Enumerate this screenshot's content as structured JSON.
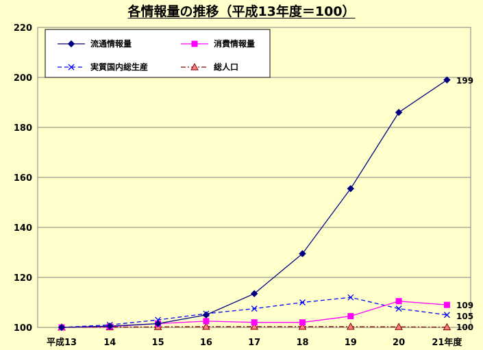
{
  "chart_data": {
    "type": "line",
    "title": "各情報量の推移（平成13年度＝100）",
    "categories": [
      "平成13",
      "14",
      "15",
      "16",
      "17",
      "18",
      "19",
      "20",
      "21年度"
    ],
    "ylim": [
      100,
      220
    ],
    "yticks": [
      100,
      120,
      140,
      160,
      180,
      200,
      220
    ],
    "grid": "horizontal",
    "legend_position": "top-left",
    "series": [
      {
        "name": "流通情報量",
        "values": [
          100,
          100.5,
          101.5,
          105,
          113.5,
          129.5,
          155.5,
          186,
          199
        ],
        "color": "#000080",
        "dash": "solid",
        "marker": "diamond",
        "end_label": "199"
      },
      {
        "name": "消費情報量",
        "values": [
          100,
          100.3,
          101.5,
          102.5,
          102,
          102,
          104.5,
          110.5,
          109
        ],
        "color": "#ff00ff",
        "dash": "solid",
        "marker": "square",
        "end_label": "109"
      },
      {
        "name": "実質国内総生産",
        "values": [
          100,
          101,
          103,
          105.5,
          107.5,
          110,
          112,
          107.5,
          105
        ],
        "color": "#0000ff",
        "dash": "dashed",
        "marker": "x",
        "end_label": "105"
      },
      {
        "name": "総人口",
        "values": [
          100,
          100.1,
          100.2,
          100.3,
          100.3,
          100.3,
          100.3,
          100.2,
          100.1
        ],
        "color": "#800000",
        "dash": "dashdot",
        "marker": "triangle",
        "end_label": "100"
      }
    ]
  }
}
